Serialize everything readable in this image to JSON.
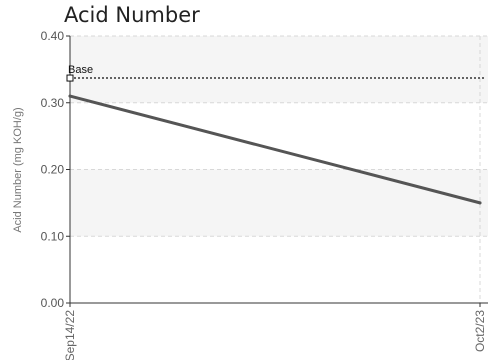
{
  "chart_data": {
    "type": "line",
    "title": "Acid Number",
    "xlabel": "",
    "ylabel": "Acid Number (mg KOH/g)",
    "ylim": [
      0,
      0.4
    ],
    "y_ticks": [
      "0.00",
      "0.10",
      "0.20",
      "0.30",
      "0.40"
    ],
    "x": [
      "Sep14/22",
      "Oct2/23"
    ],
    "x_tick_labels": [
      "Sep14/22",
      "Oct2/23"
    ],
    "series": [
      {
        "values": [
          0.31,
          0.15
        ],
        "color": "#555555"
      }
    ],
    "reference_lines": [
      {
        "label": "Base",
        "value": 0.337,
        "style": "dotted",
        "color": "#333333"
      }
    ],
    "grid": true,
    "band_color": "#f5f5f5",
    "grid_color": "#d8d8d8"
  }
}
